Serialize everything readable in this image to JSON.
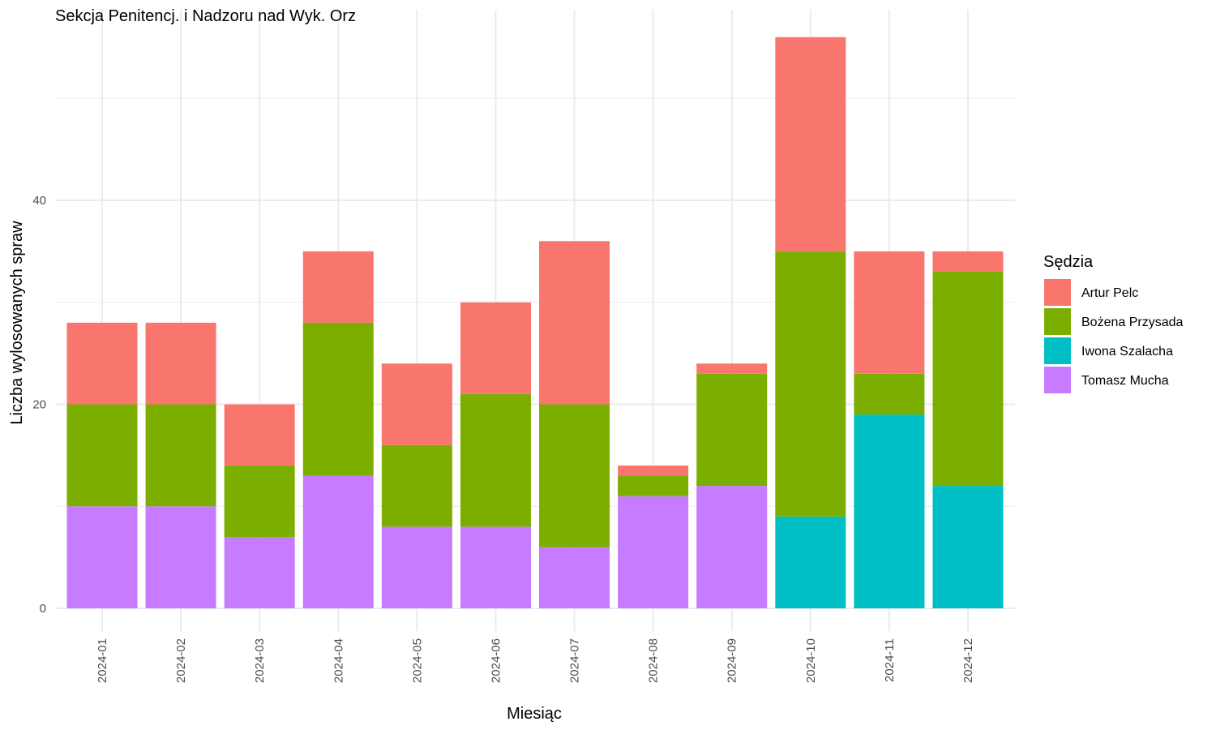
{
  "chart_data": {
    "type": "bar",
    "stacked": true,
    "title": "Sekcja Penitencj. i Nadzoru nad Wyk. Orz",
    "xlabel": "Miesiąc",
    "ylabel": "Liczba wylosowanych spraw",
    "ylim": [
      0,
      57
    ],
    "yticks": [
      0,
      20,
      40
    ],
    "grid": true,
    "legend_position": "right",
    "legend_title": "Sędzia",
    "categories": [
      "2024-01",
      "2024-02",
      "2024-03",
      "2024-04",
      "2024-05",
      "2024-06",
      "2024-07",
      "2024-08",
      "2024-09",
      "2024-10",
      "2024-11",
      "2024-12"
    ],
    "series": [
      {
        "name": "Tomasz Mucha",
        "color": "#C77CFF",
        "values": [
          10,
          10,
          7,
          13,
          8,
          8,
          6,
          11,
          12,
          0,
          0,
          0
        ]
      },
      {
        "name": "Iwona Szalacha",
        "color": "#00BFC4",
        "values": [
          0,
          0,
          0,
          0,
          0,
          0,
          0,
          0,
          0,
          9,
          19,
          12
        ]
      },
      {
        "name": "Bożena Przysada",
        "color": "#7CAE00",
        "values": [
          10,
          10,
          7,
          15,
          8,
          13,
          14,
          2,
          11,
          26,
          4,
          21
        ]
      },
      {
        "name": "Artur Pelc",
        "color": "#F8766D",
        "values": [
          8,
          8,
          6,
          7,
          8,
          9,
          16,
          1,
          1,
          21,
          12,
          2
        ]
      }
    ],
    "legend_order": [
      "Artur Pelc",
      "Bożena Przysada",
      "Iwona Szalacha",
      "Tomasz Mucha"
    ]
  }
}
